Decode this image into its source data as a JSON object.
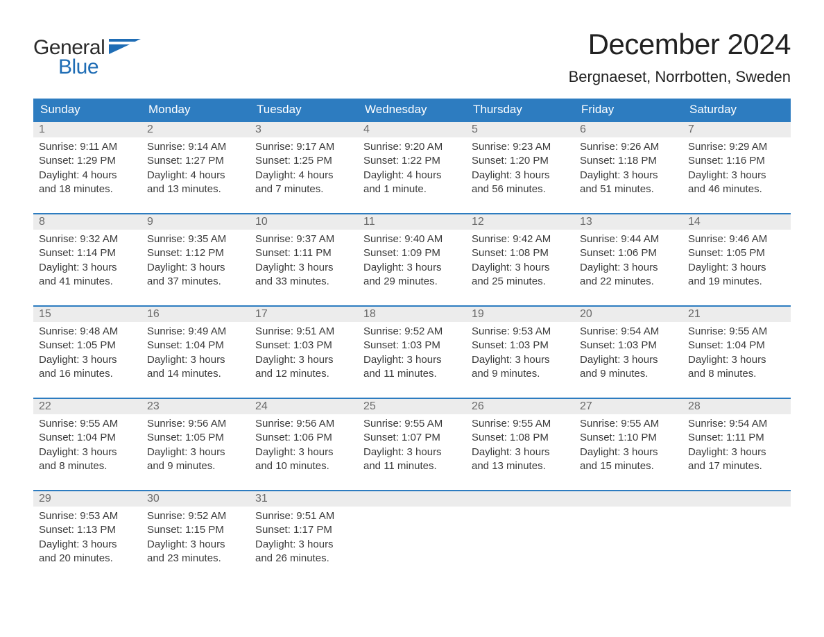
{
  "colors": {
    "header_bg": "#2d7cc0",
    "header_text": "#ffffff",
    "daynum_bg": "#ececec",
    "daynum_text": "#6a6a6a",
    "body_text": "#3a3a3a",
    "rule": "#2d7cc0",
    "logo_gray": "#2b2b2b",
    "logo_blue": "#1f6db5",
    "page_bg": "#ffffff"
  },
  "typography": {
    "title_fontsize_pt": 32,
    "location_fontsize_pt": 17,
    "dayheader_fontsize_pt": 13,
    "body_fontsize_pt": 11,
    "font_family": "Arial"
  },
  "logo": {
    "line1": "General",
    "line2": "Blue",
    "flag_color": "#1f6db5"
  },
  "title": "December 2024",
  "location": "Bergnaeset, Norrbotten, Sweden",
  "day_names": [
    "Sunday",
    "Monday",
    "Tuesday",
    "Wednesday",
    "Thursday",
    "Friday",
    "Saturday"
  ],
  "weeks": [
    [
      {
        "n": "1",
        "sunrise": "Sunrise: 9:11 AM",
        "sunset": "Sunset: 1:29 PM",
        "daylight1": "Daylight: 4 hours",
        "daylight2": "and 18 minutes."
      },
      {
        "n": "2",
        "sunrise": "Sunrise: 9:14 AM",
        "sunset": "Sunset: 1:27 PM",
        "daylight1": "Daylight: 4 hours",
        "daylight2": "and 13 minutes."
      },
      {
        "n": "3",
        "sunrise": "Sunrise: 9:17 AM",
        "sunset": "Sunset: 1:25 PM",
        "daylight1": "Daylight: 4 hours",
        "daylight2": "and 7 minutes."
      },
      {
        "n": "4",
        "sunrise": "Sunrise: 9:20 AM",
        "sunset": "Sunset: 1:22 PM",
        "daylight1": "Daylight: 4 hours",
        "daylight2": "and 1 minute."
      },
      {
        "n": "5",
        "sunrise": "Sunrise: 9:23 AM",
        "sunset": "Sunset: 1:20 PM",
        "daylight1": "Daylight: 3 hours",
        "daylight2": "and 56 minutes."
      },
      {
        "n": "6",
        "sunrise": "Sunrise: 9:26 AM",
        "sunset": "Sunset: 1:18 PM",
        "daylight1": "Daylight: 3 hours",
        "daylight2": "and 51 minutes."
      },
      {
        "n": "7",
        "sunrise": "Sunrise: 9:29 AM",
        "sunset": "Sunset: 1:16 PM",
        "daylight1": "Daylight: 3 hours",
        "daylight2": "and 46 minutes."
      }
    ],
    [
      {
        "n": "8",
        "sunrise": "Sunrise: 9:32 AM",
        "sunset": "Sunset: 1:14 PM",
        "daylight1": "Daylight: 3 hours",
        "daylight2": "and 41 minutes."
      },
      {
        "n": "9",
        "sunrise": "Sunrise: 9:35 AM",
        "sunset": "Sunset: 1:12 PM",
        "daylight1": "Daylight: 3 hours",
        "daylight2": "and 37 minutes."
      },
      {
        "n": "10",
        "sunrise": "Sunrise: 9:37 AM",
        "sunset": "Sunset: 1:11 PM",
        "daylight1": "Daylight: 3 hours",
        "daylight2": "and 33 minutes."
      },
      {
        "n": "11",
        "sunrise": "Sunrise: 9:40 AM",
        "sunset": "Sunset: 1:09 PM",
        "daylight1": "Daylight: 3 hours",
        "daylight2": "and 29 minutes."
      },
      {
        "n": "12",
        "sunrise": "Sunrise: 9:42 AM",
        "sunset": "Sunset: 1:08 PM",
        "daylight1": "Daylight: 3 hours",
        "daylight2": "and 25 minutes."
      },
      {
        "n": "13",
        "sunrise": "Sunrise: 9:44 AM",
        "sunset": "Sunset: 1:06 PM",
        "daylight1": "Daylight: 3 hours",
        "daylight2": "and 22 minutes."
      },
      {
        "n": "14",
        "sunrise": "Sunrise: 9:46 AM",
        "sunset": "Sunset: 1:05 PM",
        "daylight1": "Daylight: 3 hours",
        "daylight2": "and 19 minutes."
      }
    ],
    [
      {
        "n": "15",
        "sunrise": "Sunrise: 9:48 AM",
        "sunset": "Sunset: 1:05 PM",
        "daylight1": "Daylight: 3 hours",
        "daylight2": "and 16 minutes."
      },
      {
        "n": "16",
        "sunrise": "Sunrise: 9:49 AM",
        "sunset": "Sunset: 1:04 PM",
        "daylight1": "Daylight: 3 hours",
        "daylight2": "and 14 minutes."
      },
      {
        "n": "17",
        "sunrise": "Sunrise: 9:51 AM",
        "sunset": "Sunset: 1:03 PM",
        "daylight1": "Daylight: 3 hours",
        "daylight2": "and 12 minutes."
      },
      {
        "n": "18",
        "sunrise": "Sunrise: 9:52 AM",
        "sunset": "Sunset: 1:03 PM",
        "daylight1": "Daylight: 3 hours",
        "daylight2": "and 11 minutes."
      },
      {
        "n": "19",
        "sunrise": "Sunrise: 9:53 AM",
        "sunset": "Sunset: 1:03 PM",
        "daylight1": "Daylight: 3 hours",
        "daylight2": "and 9 minutes."
      },
      {
        "n": "20",
        "sunrise": "Sunrise: 9:54 AM",
        "sunset": "Sunset: 1:03 PM",
        "daylight1": "Daylight: 3 hours",
        "daylight2": "and 9 minutes."
      },
      {
        "n": "21",
        "sunrise": "Sunrise: 9:55 AM",
        "sunset": "Sunset: 1:04 PM",
        "daylight1": "Daylight: 3 hours",
        "daylight2": "and 8 minutes."
      }
    ],
    [
      {
        "n": "22",
        "sunrise": "Sunrise: 9:55 AM",
        "sunset": "Sunset: 1:04 PM",
        "daylight1": "Daylight: 3 hours",
        "daylight2": "and 8 minutes."
      },
      {
        "n": "23",
        "sunrise": "Sunrise: 9:56 AM",
        "sunset": "Sunset: 1:05 PM",
        "daylight1": "Daylight: 3 hours",
        "daylight2": "and 9 minutes."
      },
      {
        "n": "24",
        "sunrise": "Sunrise: 9:56 AM",
        "sunset": "Sunset: 1:06 PM",
        "daylight1": "Daylight: 3 hours",
        "daylight2": "and 10 minutes."
      },
      {
        "n": "25",
        "sunrise": "Sunrise: 9:55 AM",
        "sunset": "Sunset: 1:07 PM",
        "daylight1": "Daylight: 3 hours",
        "daylight2": "and 11 minutes."
      },
      {
        "n": "26",
        "sunrise": "Sunrise: 9:55 AM",
        "sunset": "Sunset: 1:08 PM",
        "daylight1": "Daylight: 3 hours",
        "daylight2": "and 13 minutes."
      },
      {
        "n": "27",
        "sunrise": "Sunrise: 9:55 AM",
        "sunset": "Sunset: 1:10 PM",
        "daylight1": "Daylight: 3 hours",
        "daylight2": "and 15 minutes."
      },
      {
        "n": "28",
        "sunrise": "Sunrise: 9:54 AM",
        "sunset": "Sunset: 1:11 PM",
        "daylight1": "Daylight: 3 hours",
        "daylight2": "and 17 minutes."
      }
    ],
    [
      {
        "n": "29",
        "sunrise": "Sunrise: 9:53 AM",
        "sunset": "Sunset: 1:13 PM",
        "daylight1": "Daylight: 3 hours",
        "daylight2": "and 20 minutes."
      },
      {
        "n": "30",
        "sunrise": "Sunrise: 9:52 AM",
        "sunset": "Sunset: 1:15 PM",
        "daylight1": "Daylight: 3 hours",
        "daylight2": "and 23 minutes."
      },
      {
        "n": "31",
        "sunrise": "Sunrise: 9:51 AM",
        "sunset": "Sunset: 1:17 PM",
        "daylight1": "Daylight: 3 hours",
        "daylight2": "and 26 minutes."
      },
      null,
      null,
      null,
      null
    ]
  ]
}
